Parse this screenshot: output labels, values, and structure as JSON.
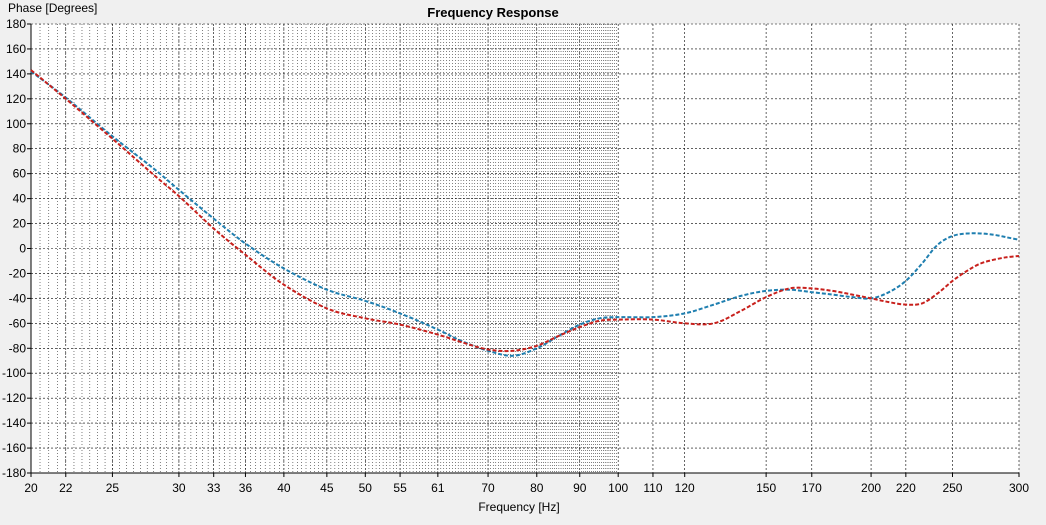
{
  "chart_data": {
    "type": "line",
    "title": "Frequency Response",
    "xlabel": "Frequency [Hz]",
    "ylabel": "Phase [Degrees]",
    "x_scale": "log",
    "xlim": [
      20,
      300
    ],
    "ylim": [
      -180,
      180
    ],
    "grid": true,
    "legend": "none",
    "x_tick_labels": [
      20,
      22,
      25,
      30,
      33,
      36,
      40,
      45,
      50,
      55,
      61,
      70,
      80,
      90,
      100,
      110,
      120,
      150,
      170,
      200,
      220,
      250,
      300
    ],
    "y_tick_labels": [
      180,
      160,
      140,
      120,
      100,
      80,
      60,
      40,
      20,
      0,
      -20,
      -40,
      -60,
      -80,
      -100,
      -120,
      -140,
      -160,
      -180
    ],
    "series": [
      {
        "color": "#1f7fb0",
        "style": "dashed",
        "x": [
          20,
          22,
          25,
          28,
          30,
          33,
          36,
          40,
          45,
          50,
          55,
          61,
          65,
          70,
          75,
          80,
          85,
          90,
          95,
          100,
          110,
          120,
          130,
          140,
          150,
          160,
          170,
          180,
          190,
          200,
          210,
          220,
          230,
          240,
          250,
          260,
          270,
          280,
          290,
          300
        ],
        "y": [
          142,
          121,
          90,
          64,
          47,
          24,
          4,
          -16,
          -33,
          -42,
          -52,
          -65,
          -74,
          -82,
          -86,
          -80,
          -70,
          -61,
          -56,
          -55,
          -55,
          -52,
          -45,
          -38,
          -34,
          -33,
          -35,
          -37,
          -39,
          -40,
          -35,
          -26,
          -12,
          3,
          10,
          12,
          12,
          11,
          9,
          7
        ]
      },
      {
        "color": "#c8201c",
        "style": "dashed",
        "x": [
          20,
          22,
          25,
          28,
          30,
          33,
          36,
          40,
          45,
          50,
          55,
          61,
          65,
          70,
          75,
          80,
          85,
          90,
          95,
          100,
          110,
          120,
          130,
          140,
          150,
          160,
          170,
          180,
          190,
          200,
          210,
          220,
          230,
          240,
          250,
          260,
          270,
          280,
          290,
          300
        ],
        "y": [
          143,
          120,
          88,
          59,
          42,
          16,
          -5,
          -29,
          -48,
          -56,
          -61,
          -69,
          -75,
          -81,
          -82,
          -78,
          -70,
          -63,
          -58,
          -57,
          -57,
          -60,
          -60,
          -50,
          -39,
          -32,
          -32,
          -34,
          -37,
          -40,
          -43,
          -45,
          -44,
          -36,
          -26,
          -18,
          -12,
          -9,
          -7,
          -6
        ]
      }
    ]
  }
}
